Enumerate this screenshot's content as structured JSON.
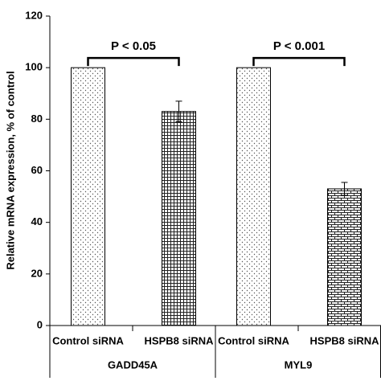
{
  "chart_data": {
    "type": "bar",
    "y_label": "Relative mRNA expression, % of control",
    "ylim": [
      0,
      120
    ],
    "yticks": [
      0,
      20,
      40,
      60,
      80,
      100,
      120
    ],
    "groups": [
      {
        "label": "GADD45A",
        "categories": [
          "Control siRNA",
          "HSPB8 siRNA"
        ],
        "values": [
          100,
          83
        ],
        "errors": [
          null,
          4
        ],
        "patterns": [
          "dots",
          "grid"
        ],
        "annotation": "P < 0.05"
      },
      {
        "label": "MYL9",
        "categories": [
          "Control siRNA",
          "HSPB8 siRNA"
        ],
        "values": [
          100,
          53
        ],
        "errors": [
          null,
          2.5
        ],
        "patterns": [
          "dots",
          "brick"
        ],
        "annotation": "P < 0.001"
      }
    ]
  }
}
